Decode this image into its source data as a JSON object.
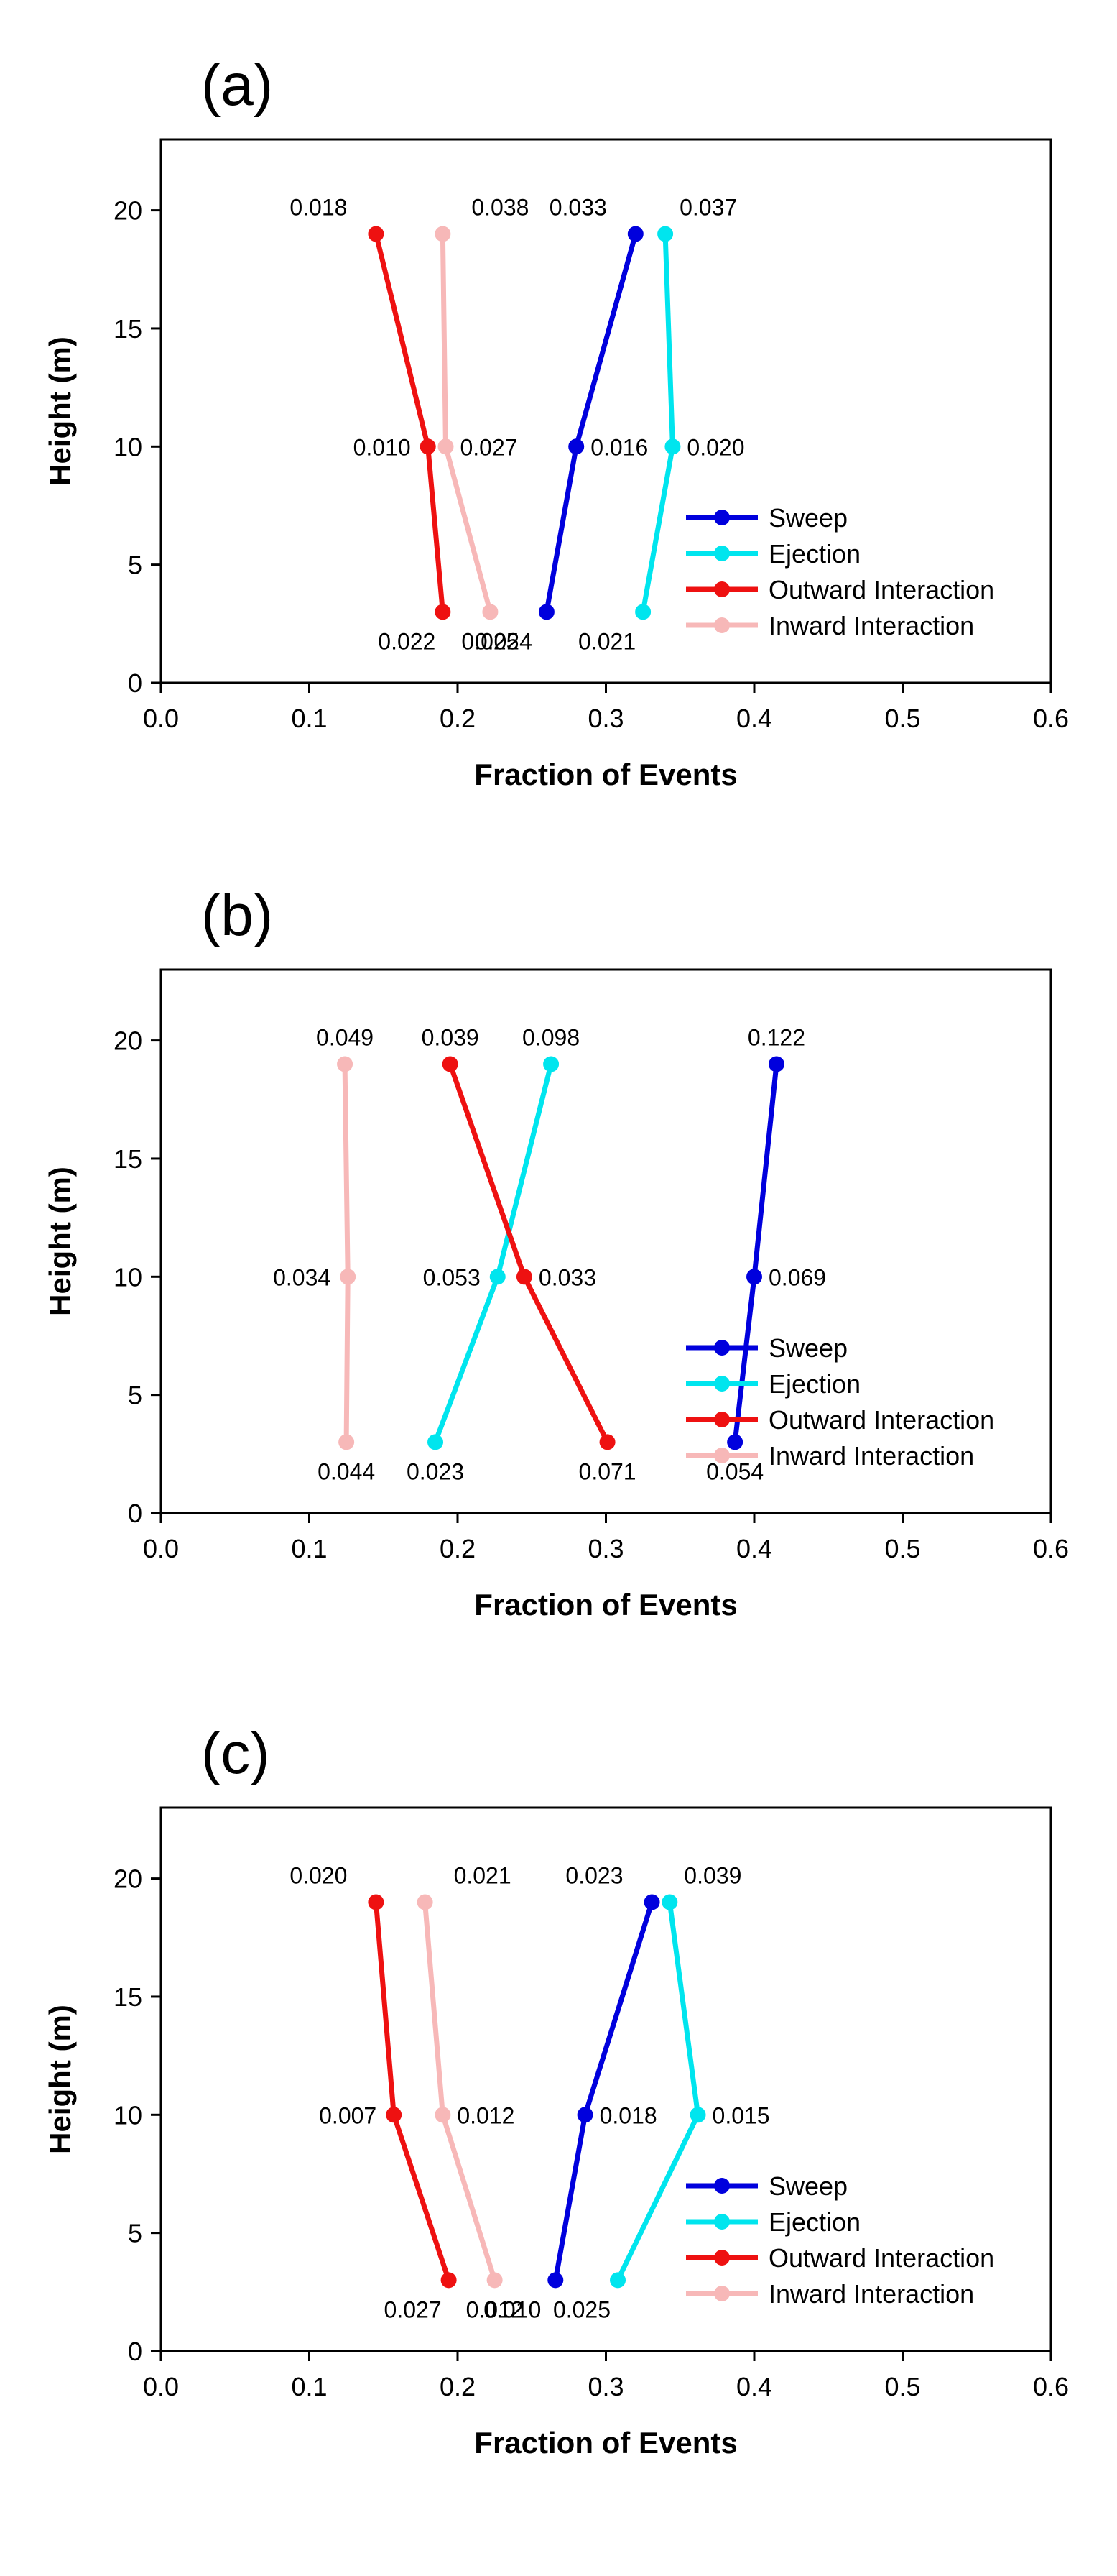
{
  "chart_data": [
    {
      "type": "line",
      "panel_label": "(a)",
      "xlabel": "Fraction of Events",
      "ylabel": "Height (m)",
      "xlim": [
        0.0,
        0.6
      ],
      "ylim": [
        0,
        23
      ],
      "x_ticks": [
        "0.0",
        "0.1",
        "0.2",
        "0.3",
        "0.4",
        "0.5",
        "0.6"
      ],
      "y_ticks": [
        "0",
        "5",
        "10",
        "15",
        "20"
      ],
      "grid": false,
      "legend_position": "bottom-right",
      "series": [
        {
          "name": "Sweep",
          "color": "#0000dd",
          "heights": [
            3,
            10,
            19
          ],
          "fractions": [
            0.26,
            0.28,
            0.32
          ],
          "point_labels": [
            "0.024",
            "0.016",
            "0.033"
          ]
        },
        {
          "name": "Ejection",
          "color": "#00e5ee",
          "heights": [
            3,
            10,
            19
          ],
          "fractions": [
            0.325,
            0.345,
            0.34
          ],
          "point_labels": [
            "0.021",
            "0.020",
            "0.037"
          ]
        },
        {
          "name": "Outward Interaction",
          "color": "#ee1111",
          "heights": [
            3,
            10,
            19
          ],
          "fractions": [
            0.19,
            0.18,
            0.145
          ],
          "point_labels": [
            "0.022",
            "0.010",
            "0.018"
          ]
        },
        {
          "name": "Inward Interaction",
          "color": "#f7b8b8",
          "heights": [
            3,
            10,
            19
          ],
          "fractions": [
            0.222,
            0.192,
            0.19
          ],
          "point_labels": [
            "0.025",
            "0.027",
            "0.038"
          ]
        }
      ]
    },
    {
      "type": "line",
      "panel_label": "(b)",
      "xlabel": "Fraction of Events",
      "ylabel": "Height (m)",
      "xlim": [
        0.0,
        0.6
      ],
      "ylim": [
        0,
        23
      ],
      "x_ticks": [
        "0.0",
        "0.1",
        "0.2",
        "0.3",
        "0.4",
        "0.5",
        "0.6"
      ],
      "y_ticks": [
        "0",
        "5",
        "10",
        "15",
        "20"
      ],
      "grid": false,
      "legend_position": "bottom-right",
      "series": [
        {
          "name": "Sweep",
          "color": "#0000dd",
          "heights": [
            3,
            10,
            19
          ],
          "fractions": [
            0.387,
            0.4,
            0.415
          ],
          "point_labels": [
            "0.054",
            "0.069",
            "0.122"
          ]
        },
        {
          "name": "Ejection",
          "color": "#00e5ee",
          "heights": [
            3,
            10,
            19
          ],
          "fractions": [
            0.185,
            0.227,
            0.263
          ],
          "point_labels": [
            "0.023",
            "0.053",
            "0.098"
          ]
        },
        {
          "name": "Outward Interaction",
          "color": "#ee1111",
          "heights": [
            3,
            10,
            19
          ],
          "fractions": [
            0.301,
            0.245,
            0.195
          ],
          "point_labels": [
            "0.071",
            "0.033",
            "0.039"
          ]
        },
        {
          "name": "Inward Interaction",
          "color": "#f7b8b8",
          "heights": [
            3,
            10,
            19
          ],
          "fractions": [
            0.125,
            0.126,
            0.124
          ],
          "point_labels": [
            "0.044",
            "0.034",
            "0.049"
          ]
        }
      ]
    },
    {
      "type": "line",
      "panel_label": "(c)",
      "xlabel": "Fraction of Events",
      "ylabel": "Height (m)",
      "xlim": [
        0.0,
        0.6
      ],
      "ylim": [
        0,
        23
      ],
      "x_ticks": [
        "0.0",
        "0.1",
        "0.2",
        "0.3",
        "0.4",
        "0.5",
        "0.6"
      ],
      "y_ticks": [
        "0",
        "5",
        "10",
        "15",
        "20"
      ],
      "grid": false,
      "legend_position": "bottom-right",
      "series": [
        {
          "name": "Sweep",
          "color": "#0000dd",
          "heights": [
            3,
            10,
            19
          ],
          "fractions": [
            0.266,
            0.286,
            0.331
          ],
          "point_labels": [
            "0.010",
            "0.018",
            "0.023"
          ]
        },
        {
          "name": "Ejection",
          "color": "#00e5ee",
          "heights": [
            3,
            10,
            19
          ],
          "fractions": [
            0.308,
            0.362,
            0.343
          ],
          "point_labels": [
            "0.025",
            "0.015",
            "0.039"
          ]
        },
        {
          "name": "Outward Interaction",
          "color": "#ee1111",
          "heights": [
            3,
            10,
            19
          ],
          "fractions": [
            0.194,
            0.157,
            0.145
          ],
          "point_labels": [
            "0.027",
            "0.007",
            "0.020"
          ]
        },
        {
          "name": "Inward Interaction",
          "color": "#f7b8b8",
          "heights": [
            3,
            10,
            19
          ],
          "fractions": [
            0.225,
            0.19,
            0.178
          ],
          "point_labels": [
            "0.012",
            "0.012",
            "0.021"
          ]
        }
      ]
    }
  ]
}
